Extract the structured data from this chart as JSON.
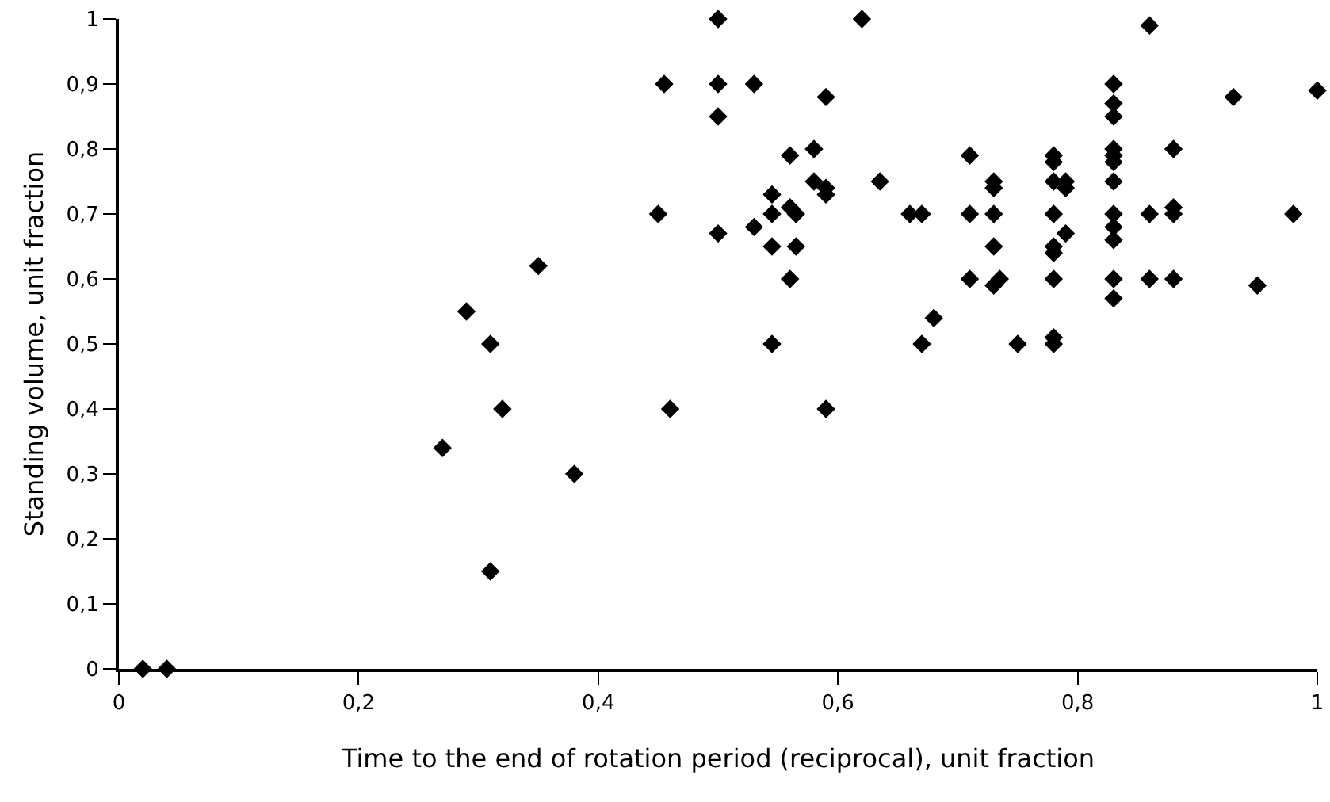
{
  "chart_data": {
    "type": "scatter",
    "xlabel": "Time to the end of rotation period (reciprocal), unit fraction",
    "ylabel": "Standing volume, unit fraction",
    "marker": "diamond",
    "grid": false,
    "xlim": [
      0,
      1
    ],
    "ylim": [
      0,
      1
    ],
    "xticks": [
      0,
      {
        "value": 0.2,
        "label": "0,2"
      },
      {
        "value": 0.4,
        "label": "0,4"
      },
      {
        "value": 0.6,
        "label": "0,6"
      },
      {
        "value": 0.8,
        "label": "0,8"
      },
      1
    ],
    "yticks": [
      0,
      {
        "value": 0.1,
        "label": "0,1"
      },
      {
        "value": 0.2,
        "label": "0,2"
      },
      {
        "value": 0.3,
        "label": "0,3"
      },
      {
        "value": 0.4,
        "label": "0,4"
      },
      {
        "value": 0.5,
        "label": "0,5"
      },
      {
        "value": 0.6,
        "label": "0,6"
      },
      {
        "value": 0.7,
        "label": "0,7"
      },
      {
        "value": 0.8,
        "label": "0,8"
      },
      {
        "value": 0.9,
        "label": "0,9"
      },
      1
    ],
    "series": [
      {
        "color": "#000000",
        "x": [
          0.02,
          0.04,
          0.27,
          0.29,
          0.31,
          0.32,
          0.31,
          0.35,
          0.38,
          0.455,
          0.5,
          0.53,
          0.59,
          0.5,
          0.56,
          0.58,
          0.58,
          0.59,
          0.59,
          0.545,
          0.45,
          0.545,
          0.56,
          0.565,
          0.5,
          0.53,
          0.545,
          0.565,
          0.56,
          0.545,
          0.46,
          0.59,
          0.83,
          0.83,
          0.83,
          0.93,
          1.0,
          0.88,
          0.83,
          0.83,
          0.83,
          0.71,
          0.78,
          0.78,
          0.73,
          0.73,
          0.78,
          0.79,
          0.79,
          0.83,
          0.635,
          0.66,
          0.67,
          0.71,
          0.73,
          0.78,
          0.83,
          0.83,
          0.83,
          0.86,
          0.88,
          0.88,
          0.98,
          0.73,
          0.78,
          0.78,
          0.79,
          0.71,
          0.73,
          0.735,
          0.78,
          0.83,
          0.83,
          0.86,
          0.88,
          0.95,
          0.68,
          0.67,
          0.75,
          0.78,
          0.78,
          0.5,
          0.62,
          0.86
        ],
        "values": [
          0,
          0,
          0.34,
          0.55,
          0.5,
          0.4,
          0.15,
          0.62,
          0.3,
          0.9,
          0.9,
          0.9,
          0.88,
          0.85,
          0.79,
          0.8,
          0.75,
          0.74,
          0.73,
          0.73,
          0.7,
          0.7,
          0.71,
          0.7,
          0.67,
          0.68,
          0.65,
          0.65,
          0.6,
          0.5,
          0.4,
          0.4,
          0.9,
          0.87,
          0.85,
          0.88,
          0.89,
          0.8,
          0.8,
          0.79,
          0.78,
          0.79,
          0.79,
          0.78,
          0.75,
          0.74,
          0.75,
          0.75,
          0.74,
          0.75,
          0.75,
          0.7,
          0.7,
          0.7,
          0.7,
          0.7,
          0.7,
          0.68,
          0.66,
          0.7,
          0.71,
          0.7,
          0.7,
          0.65,
          0.65,
          0.64,
          0.67,
          0.6,
          0.59,
          0.6,
          0.6,
          0.6,
          0.57,
          0.6,
          0.6,
          0.59,
          0.54,
          0.5,
          0.5,
          0.51,
          0.5,
          1.0,
          1.0,
          0.99
        ]
      }
    ]
  }
}
